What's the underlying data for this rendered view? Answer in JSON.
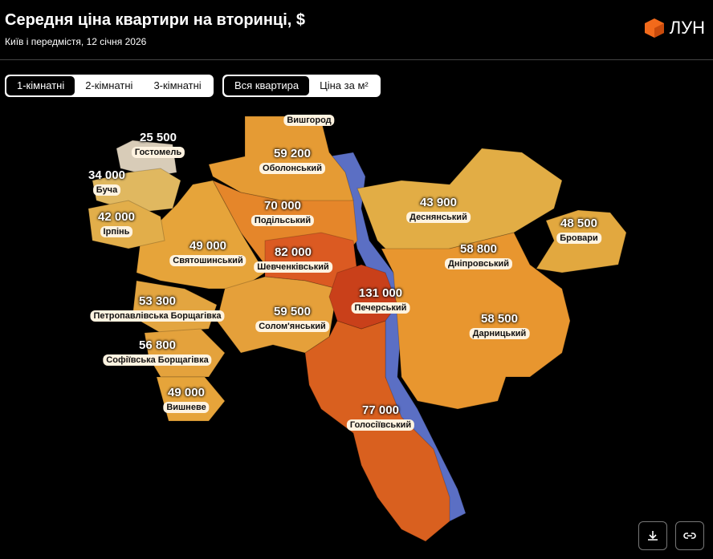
{
  "header": {
    "title": "Середня ціна квартири на вторинці, $",
    "subtitle": "Київ і передмістя, 12 січня 2026",
    "brand": "ЛУН"
  },
  "tabs": {
    "rooms": [
      "1-кімнатні",
      "2-кімнатні",
      "3-кімнатні"
    ],
    "price_mode": [
      "Вся квартира",
      "Ціна за м²"
    ]
  },
  "regions": [
    {
      "name": "Гостомель",
      "price": "25 500"
    },
    {
      "name": "Буча",
      "price": "34 000"
    },
    {
      "name": "Ірпінь",
      "price": "42 000"
    },
    {
      "name": "Вишгород"
    },
    {
      "name": "Оболонський",
      "price": "59 200"
    },
    {
      "name": "Подільський",
      "price": "70 000"
    },
    {
      "name": "Святошинський",
      "price": "49 000"
    },
    {
      "name": "Шевченківський",
      "price": "82 000"
    },
    {
      "name": "Деснянський",
      "price": "43 900"
    },
    {
      "name": "Дніпровський",
      "price": "58 800"
    },
    {
      "name": "Бровари",
      "price": "48 500"
    },
    {
      "name": "Печерський",
      "price": "131 000"
    },
    {
      "name": "Петропавлівська Борщагівка",
      "price": "53 300"
    },
    {
      "name": "Солом'янський",
      "price": "59 500"
    },
    {
      "name": "Дарницький",
      "price": "58 500"
    },
    {
      "name": "Софіївська Борщагівка",
      "price": "56 800"
    },
    {
      "name": "Вишневе",
      "price": "49 000"
    },
    {
      "name": "Голосіївський",
      "price": "77 000"
    }
  ]
}
